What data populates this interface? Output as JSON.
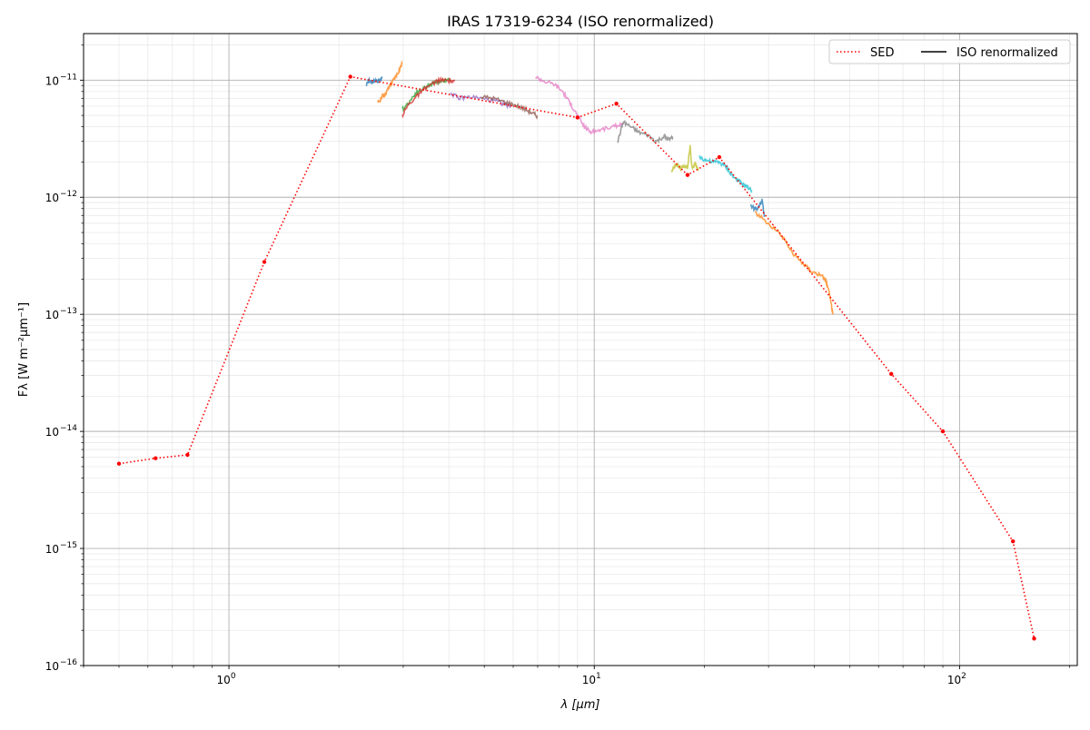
{
  "chart_data": {
    "type": "line",
    "title": "IRAS 17319-6234 (ISO renormalized)",
    "xlabel": "λ [μm]",
    "ylabel": "Fλ [W m⁻²μm⁻¹]",
    "xscale": "log",
    "yscale": "log",
    "xlim": [
      0.4,
      210
    ],
    "ylim": [
      1e-16,
      2.5e-11
    ],
    "grid": true,
    "legend_placement": "top-right",
    "x_tick_labels": [
      {
        "value": 1,
        "base": "10",
        "exp": "0"
      },
      {
        "value": 10,
        "base": "10",
        "exp": "1"
      },
      {
        "value": 100,
        "base": "10",
        "exp": "2"
      }
    ],
    "y_tick_labels": [
      {
        "value": 1e-11,
        "base": "10",
        "exp": "−11"
      },
      {
        "value": 1e-12,
        "base": "10",
        "exp": "−12"
      },
      {
        "value": 1e-13,
        "base": "10",
        "exp": "−13"
      },
      {
        "value": 1e-14,
        "base": "10",
        "exp": "−14"
      },
      {
        "value": 1e-15,
        "base": "10",
        "exp": "−15"
      },
      {
        "value": 1e-16,
        "base": "10",
        "exp": "−16"
      }
    ],
    "legend": [
      {
        "label": "SED",
        "style": "dotted",
        "color": "#ff0000"
      },
      {
        "label": "ISO renormalized",
        "style": "solid",
        "color": "#000000"
      }
    ],
    "sed": {
      "name": "SED",
      "color": "#ff0000",
      "points": [
        [
          0.5,
          5.3e-15
        ],
        [
          0.63,
          5.9e-15
        ],
        [
          0.77,
          6.3e-15
        ],
        [
          1.25,
          2.8e-13
        ],
        [
          2.15,
          1.07e-11
        ],
        [
          9.0,
          4.8e-12
        ],
        [
          11.5,
          6.3e-12
        ],
        [
          18.0,
          1.55e-12
        ],
        [
          22.0,
          2.2e-12
        ],
        [
          65.0,
          3.1e-14
        ],
        [
          90.0,
          1e-14
        ],
        [
          140.0,
          1.15e-15
        ],
        [
          160.0,
          1.7e-16
        ]
      ]
    },
    "iso_segments": [
      {
        "color": "#1f77b4",
        "points": [
          [
            2.38,
            9.2e-12
          ],
          [
            2.42,
            1e-11
          ],
          [
            2.47,
            9.5e-12
          ],
          [
            2.52,
            1.02e-11
          ],
          [
            2.57,
            9.6e-12
          ],
          [
            2.63,
            1.07e-11
          ]
        ]
      },
      {
        "color": "#ff7f0e",
        "points": [
          [
            2.55,
            6.3e-12
          ],
          [
            2.62,
            7.2e-12
          ],
          [
            2.68,
            7.6e-12
          ],
          [
            2.75,
            8.8e-12
          ],
          [
            2.82,
            1e-11
          ],
          [
            2.9,
            1.15e-11
          ],
          [
            2.98,
            1.38e-11
          ]
        ]
      },
      {
        "color": "#2ca02c",
        "points": [
          [
            2.98,
            5.6e-12
          ],
          [
            3.1,
            6.4e-12
          ],
          [
            3.25,
            7.8e-12
          ],
          [
            3.45,
            8.7e-12
          ],
          [
            3.65,
            9.5e-12
          ],
          [
            3.85,
            1e-11
          ],
          [
            4.05,
            1e-11
          ]
        ]
      },
      {
        "color": "#d62728",
        "points": [
          [
            2.98,
            5e-12
          ],
          [
            3.1,
            6.2e-12
          ],
          [
            3.3,
            7.5e-12
          ],
          [
            3.5,
            8.8e-12
          ],
          [
            3.75,
            1e-11
          ],
          [
            4.0,
            9.9e-12
          ],
          [
            4.15,
            9.8e-12
          ]
        ]
      },
      {
        "color": "#9467bd",
        "points": [
          [
            4.05,
            7.8e-12
          ],
          [
            4.25,
            7e-12
          ],
          [
            4.6,
            7.2e-12
          ],
          [
            5.0,
            6.9e-12
          ],
          [
            5.4,
            6.6e-12
          ],
          [
            5.7,
            6.2e-12
          ],
          [
            5.9,
            6e-12
          ]
        ]
      },
      {
        "color": "#8c564b",
        "points": [
          [
            4.9,
            7.2e-12
          ],
          [
            5.3,
            7e-12
          ],
          [
            5.7,
            6.5e-12
          ],
          [
            6.1,
            6.1e-12
          ],
          [
            6.5,
            5.6e-12
          ],
          [
            6.8,
            5.2e-12
          ],
          [
            7.0,
            4.9e-12
          ]
        ]
      },
      {
        "color": "#e377c2",
        "points": [
          [
            6.9,
            1.07e-11
          ],
          [
            7.3,
            9.8e-12
          ],
          [
            7.8,
            9.2e-12
          ],
          [
            8.2,
            8e-12
          ],
          [
            8.6,
            6.3e-12
          ],
          [
            9.0,
            5e-12
          ],
          [
            9.4,
            4e-12
          ],
          [
            9.8,
            3.6e-12
          ],
          [
            10.5,
            3.8e-12
          ],
          [
            11.3,
            4e-12
          ],
          [
            12.0,
            4.3e-12
          ]
        ]
      },
      {
        "color": "#7f7f7f",
        "points": [
          [
            11.6,
            3e-12
          ],
          [
            12.0,
            4.4e-12
          ],
          [
            12.6,
            4e-12
          ],
          [
            13.2,
            3.6e-12
          ],
          [
            14.0,
            3.4e-12
          ],
          [
            14.8,
            3e-12
          ],
          [
            15.5,
            3.3e-12
          ],
          [
            16.0,
            3.1e-12
          ],
          [
            16.4,
            3.3e-12
          ]
        ]
      },
      {
        "color": "#bcbd22",
        "points": [
          [
            16.3,
            1.7e-12
          ],
          [
            16.7,
            1.9e-12
          ],
          [
            17.2,
            1.75e-12
          ],
          [
            17.6,
            1.85e-12
          ],
          [
            18.0,
            1.8e-12
          ],
          [
            18.3,
            2.7e-12
          ],
          [
            18.5,
            1.8e-12
          ],
          [
            18.9,
            1.9e-12
          ],
          [
            19.3,
            1.7e-12
          ]
        ]
      },
      {
        "color": "#17becf",
        "points": [
          [
            19.4,
            2.2e-12
          ],
          [
            20.0,
            2.1e-12
          ],
          [
            21.0,
            2e-12
          ],
          [
            22.0,
            2e-12
          ],
          [
            23.0,
            1.8e-12
          ],
          [
            24.0,
            1.5e-12
          ],
          [
            25.0,
            1.35e-12
          ],
          [
            26.0,
            1.25e-12
          ],
          [
            27.0,
            1.15e-12
          ]
        ]
      },
      {
        "color": "#1f77b4",
        "points": [
          [
            26.8,
            8.5e-13
          ],
          [
            27.5,
            8e-13
          ],
          [
            28.2,
            8.3e-13
          ],
          [
            28.8,
            9.5e-13
          ],
          [
            29.2,
            6.8e-13
          ]
        ]
      },
      {
        "color": "#ff7f0e",
        "points": [
          [
            27.5,
            7.5e-13
          ],
          [
            29.0,
            6.5e-13
          ],
          [
            31.0,
            5.5e-13
          ],
          [
            33.0,
            4.5e-13
          ],
          [
            35.0,
            3.3e-13
          ],
          [
            37.0,
            2.8e-13
          ],
          [
            39.0,
            2.4e-13
          ],
          [
            41.0,
            2.2e-13
          ],
          [
            43.0,
            2e-13
          ],
          [
            44.0,
            1.5e-13
          ],
          [
            45.0,
            1e-13
          ]
        ]
      }
    ]
  }
}
